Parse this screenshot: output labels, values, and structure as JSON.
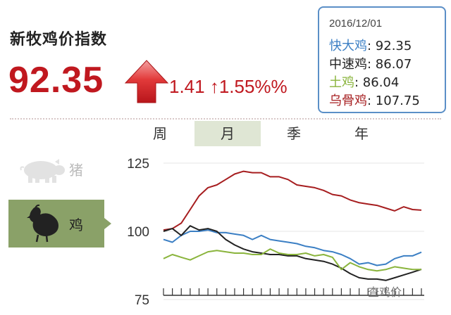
{
  "header": {
    "title": "新牧鸡价指数",
    "value": "92.35",
    "change": "1.41 ↑1.55%%"
  },
  "infobox": {
    "date": "2016/12/01",
    "rows": [
      {
        "name": "快大鸡",
        "value": ": 92.35",
        "color": "#3b7fc4"
      },
      {
        "name": "中速鸡",
        "value": ": 86.07",
        "color": "#222222"
      },
      {
        "name": "土鸡",
        "value": ": 86.04",
        "color": "#8ab43c"
      },
      {
        "name": "乌骨鸡",
        "value": ": 107.75",
        "color": "#a61d1f"
      }
    ]
  },
  "tabs": [
    {
      "label": "周",
      "active": false
    },
    {
      "label": "月",
      "active": true
    },
    {
      "label": "季",
      "active": false
    },
    {
      "label": "年",
      "active": false
    }
  ],
  "sidebar": {
    "pig_label": "猪",
    "chicken_label": "鸡"
  },
  "watermark": "查鸡价",
  "colors": {
    "accent_red": "#c0181f",
    "box_border": "#5b8fc7",
    "active_tab": "#dfe6d4",
    "chicken_panel": "#8aa168"
  },
  "chart_data": {
    "type": "line",
    "x": [
      1,
      2,
      3,
      4,
      5,
      6,
      7,
      8,
      9,
      10,
      11,
      12,
      13,
      14,
      15,
      16,
      17,
      18,
      19,
      20,
      21,
      22,
      23,
      24,
      25,
      26,
      27,
      28,
      29,
      30
    ],
    "yticks": [
      "125",
      "100",
      "75"
    ],
    "ylim": [
      75,
      125
    ],
    "series": [
      {
        "color": "#a61d1f",
        "values": [
          100.5,
          101,
          103,
          108,
          113,
          116,
          117,
          119,
          121,
          122,
          121.5,
          121.5,
          120,
          120,
          119,
          117,
          116.5,
          116,
          115,
          113.5,
          113,
          111.5,
          110.5,
          110,
          109.5,
          108.5,
          107.5,
          109,
          108,
          107.75
        ]
      },
      {
        "color": "#3b7fc4",
        "values": [
          97,
          96,
          98.5,
          100,
          100,
          100.5,
          99.5,
          99.5,
          99,
          98.5,
          97,
          98.5,
          97,
          96.5,
          96,
          95.5,
          94.5,
          94,
          93,
          92.5,
          91.5,
          90,
          88,
          88.5,
          87.5,
          88,
          90,
          91,
          91,
          92.35
        ]
      },
      {
        "color": "#222222",
        "values": [
          100,
          101,
          98.5,
          102,
          100.5,
          101,
          100,
          97,
          95,
          93.5,
          92.5,
          92,
          91.5,
          91.5,
          91,
          91,
          90,
          89.5,
          89,
          88,
          86.5,
          84.5,
          83,
          82.5,
          82.5,
          82,
          83,
          84,
          85,
          86.07
        ]
      },
      {
        "color": "#8ab43c",
        "values": [
          90,
          91.5,
          90.5,
          89.5,
          91,
          92.5,
          93,
          92.5,
          92,
          92,
          91.5,
          91.5,
          93.5,
          92,
          91.5,
          91.5,
          92,
          91,
          91.5,
          90.5,
          86,
          88.5,
          87,
          86,
          85.5,
          86,
          87,
          86.5,
          86,
          86.04
        ]
      }
    ]
  }
}
